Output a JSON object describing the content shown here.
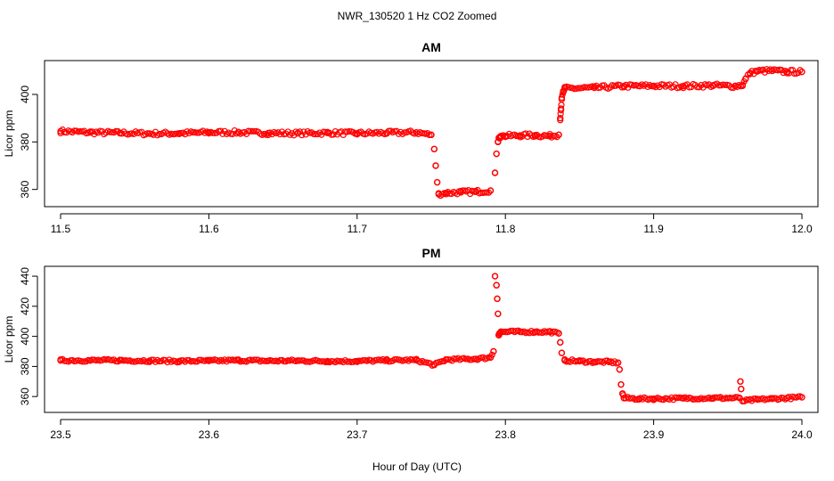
{
  "figure": {
    "title": "NWR_130520  1 Hz CO2 Zoomed",
    "xlabel": "Hour of Day (UTC)",
    "marker_color": "#ff0000"
  },
  "chart_data": [
    {
      "type": "scatter",
      "title": "AM",
      "xlabel": "Hour of Day (UTC)",
      "ylabel": "Licor ppm",
      "xlim": [
        11.5,
        12.0
      ],
      "ylim": [
        355,
        412
      ],
      "xticks": [
        "11.5",
        "11.6",
        "11.7",
        "11.8",
        "11.9",
        "12.0"
      ],
      "yticks": [
        "360",
        "380",
        "400"
      ],
      "grid": false,
      "series": [
        {
          "marker": "open-circle",
          "color": "#ff0000",
          "x": [
            11.5,
            11.52,
            11.54,
            11.56,
            11.58,
            11.6,
            11.62,
            11.64,
            11.66,
            11.68,
            11.7,
            11.72,
            11.74,
            11.75,
            11.752,
            11.753,
            11.754,
            11.755,
            11.76,
            11.77,
            11.78,
            11.79,
            11.793,
            11.794,
            11.795,
            11.796,
            11.797,
            11.8,
            11.81,
            11.82,
            11.83,
            11.836,
            11.837,
            11.8375,
            11.838,
            11.839,
            11.84,
            11.86,
            11.88,
            11.9,
            11.92,
            11.94,
            11.955,
            11.96,
            11.962,
            11.965,
            11.97,
            11.98,
            11.99,
            12.0
          ],
          "y": [
            384.5,
            384,
            383.8,
            383.5,
            383.6,
            384,
            384,
            383.7,
            383.6,
            383.8,
            383.6,
            383.8,
            384,
            383,
            377,
            370,
            363,
            358,
            358.5,
            358.8,
            359,
            359.5,
            367,
            375,
            380,
            382,
            382.5,
            382.5,
            382.7,
            382.8,
            382.5,
            383,
            390,
            394,
            398,
            401,
            402.5,
            402.8,
            403.5,
            403.6,
            403.5,
            403.8,
            403.5,
            404,
            406.5,
            409,
            409.8,
            410,
            409.5,
            409.5
          ]
        }
      ]
    },
    {
      "type": "scatter",
      "title": "PM",
      "xlabel": "Hour of Day (UTC)",
      "ylabel": "Licor ppm",
      "xlim": [
        23.5,
        24.0
      ],
      "ylim": [
        353,
        443
      ],
      "xticks": [
        "23.5",
        "23.6",
        "23.7",
        "23.8",
        "23.9",
        "24.0"
      ],
      "yticks": [
        "360",
        "380",
        "400",
        "420",
        "440"
      ],
      "grid": false,
      "series": [
        {
          "marker": "open-circle",
          "color": "#ff0000",
          "x": [
            23.5,
            23.52,
            23.54,
            23.56,
            23.58,
            23.6,
            23.62,
            23.64,
            23.66,
            23.68,
            23.7,
            23.72,
            23.74,
            23.752,
            23.76,
            23.78,
            23.79,
            23.792,
            23.793,
            23.794,
            23.7945,
            23.795,
            23.7955,
            23.796,
            23.797,
            23.8,
            23.81,
            23.82,
            23.83,
            23.836,
            23.837,
            23.838,
            23.84,
            23.85,
            23.86,
            23.87,
            23.876,
            23.877,
            23.878,
            23.879,
            23.88,
            23.89,
            23.9,
            23.92,
            23.94,
            23.958,
            23.9585,
            23.959,
            23.96,
            23.97,
            23.98,
            23.99,
            24.0
          ],
          "y": [
            384,
            384,
            384,
            383.8,
            383.5,
            383.7,
            384,
            383.7,
            383.8,
            383.5,
            383.5,
            384,
            384.2,
            381,
            384.5,
            385,
            386,
            390,
            440,
            434,
            425,
            415,
            401,
            402,
            403,
            403,
            403,
            403,
            403,
            402,
            396,
            389,
            384,
            383.5,
            383,
            383,
            382.5,
            378,
            368,
            362,
            359,
            358.5,
            358.5,
            358.8,
            359,
            359,
            370,
            365,
            357,
            358,
            358.5,
            359,
            359.5
          ]
        }
      ]
    }
  ]
}
